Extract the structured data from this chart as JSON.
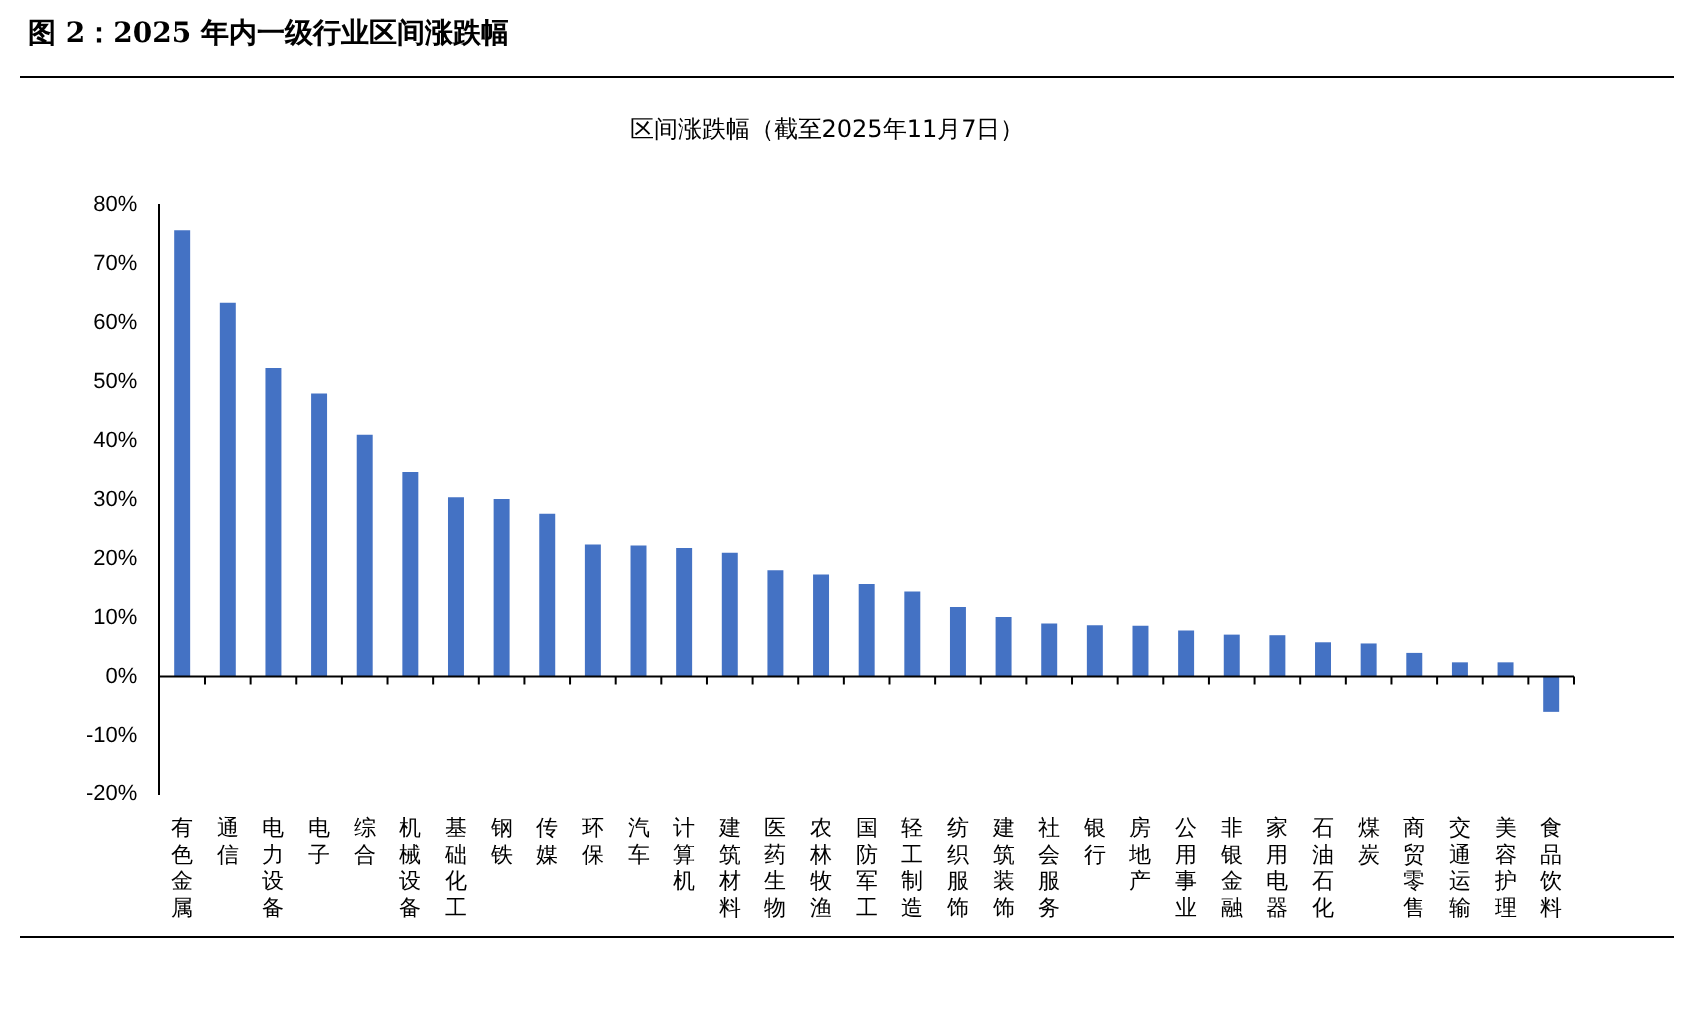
{
  "chart_data": {
    "type": "bar",
    "title": "图 2：2025 年内一级行业区间涨跌幅",
    "subtitle": "区间涨跌幅（截至2025年11月7日）",
    "categories": [
      "有色金属",
      "通信",
      "电力设备",
      "电子",
      "综合",
      "机械设备",
      "基础化工",
      "钢铁",
      "传媒",
      "环保",
      "汽车",
      "计算机",
      "建筑材料",
      "医药生物",
      "农林牧渔",
      "国防军工",
      "轻工制造",
      "纺织服饰",
      "建筑装饰",
      "社会服务",
      "银行",
      "房地产",
      "公用事业",
      "非银金融",
      "家用电器",
      "石油石化",
      "煤炭",
      "商贸零售",
      "交通运输",
      "美容护理",
      "食品饮料"
    ],
    "values": [
      75.7,
      63.4,
      52.3,
      48.0,
      41.0,
      34.7,
      30.4,
      30.1,
      27.6,
      22.4,
      22.2,
      21.8,
      21.0,
      18.0,
      17.3,
      15.7,
      14.4,
      11.8,
      10.1,
      9.0,
      8.7,
      8.6,
      7.8,
      7.1,
      7.0,
      5.8,
      5.6,
      4.0,
      2.4,
      2.4,
      -6.0
    ],
    "color": "#4472c4",
    "ylim": [
      -20,
      80
    ],
    "yticks": [
      {
        "value": -20,
        "label": "-20%"
      },
      {
        "value": -10,
        "label": "-10%"
      },
      {
        "value": 0,
        "label": "0%"
      },
      {
        "value": 10,
        "label": "10%"
      },
      {
        "value": 20,
        "label": "20%"
      },
      {
        "value": 30,
        "label": "30%"
      },
      {
        "value": 40,
        "label": "40%"
      },
      {
        "value": 50,
        "label": "50%"
      },
      {
        "value": 60,
        "label": "60%"
      },
      {
        "value": 70,
        "label": "70%"
      },
      {
        "value": 80,
        "label": "80%"
      }
    ],
    "legend": false
  }
}
